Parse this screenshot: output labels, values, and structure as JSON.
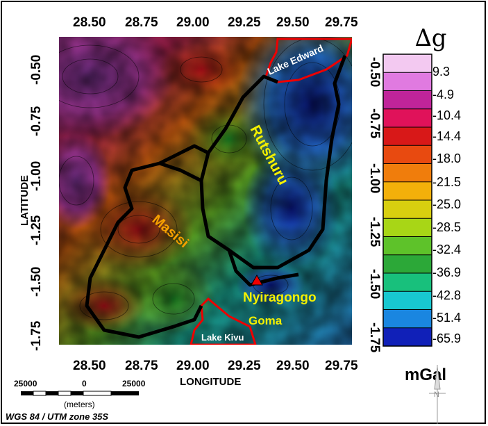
{
  "map": {
    "top_longitude_ticks": [
      "28.50",
      "28.75",
      "29.00",
      "29.25",
      "29.50",
      "29.75"
    ],
    "bottom_longitude_ticks": [
      "28.50",
      "28.75",
      "29.00",
      "29.25",
      "29.50",
      "29.75"
    ],
    "left_latitude_ticks": [
      "-0.50",
      "-0.75",
      "-1.00",
      "-1.25",
      "-1.50",
      "-1.75"
    ],
    "right_latitude_ticks": [
      "-0.50",
      "-0.75",
      "-1.00",
      "-1.25",
      "-1.50",
      "-1.75"
    ],
    "x_axis_label": "LONGITUDE",
    "y_axis_label": "LATITUDE",
    "places": {
      "lake_edward": "Lake Edward",
      "rutshuru": "Rutshuru",
      "masisi": "Masisi",
      "nyiragongo": "Nyiragongo",
      "goma": "Goma",
      "lake_kivu": "Lake Kivu"
    }
  },
  "legend": {
    "title": "∆g",
    "unit": "mGal",
    "values": [
      "9.3",
      "-4.9",
      "-10.4",
      "-14.4",
      "-18.0",
      "-21.5",
      "-25.0",
      "-28.5",
      "-32.4",
      "-36.9",
      "-42.8",
      "-51.4",
      "-65.9"
    ],
    "colors": [
      "#f3c9f1",
      "#e07ae0",
      "#c0249a",
      "#e0125a",
      "#d81818",
      "#e84a10",
      "#f07d0c",
      "#f3b00a",
      "#d8cf0f",
      "#a8d616",
      "#5ec22a",
      "#2ca838",
      "#18c07c",
      "#18c8d0",
      "#1a86e0",
      "#1020b8"
    ]
  },
  "scale_bar": {
    "left_label": "25000",
    "middle_label": "0",
    "right_label": "25000",
    "unit": "(meters)",
    "projection": "WGS 84 / UTM zone 35S"
  },
  "north_arrow": {
    "label": "N",
    "icon": "north-arrow-icon"
  }
}
